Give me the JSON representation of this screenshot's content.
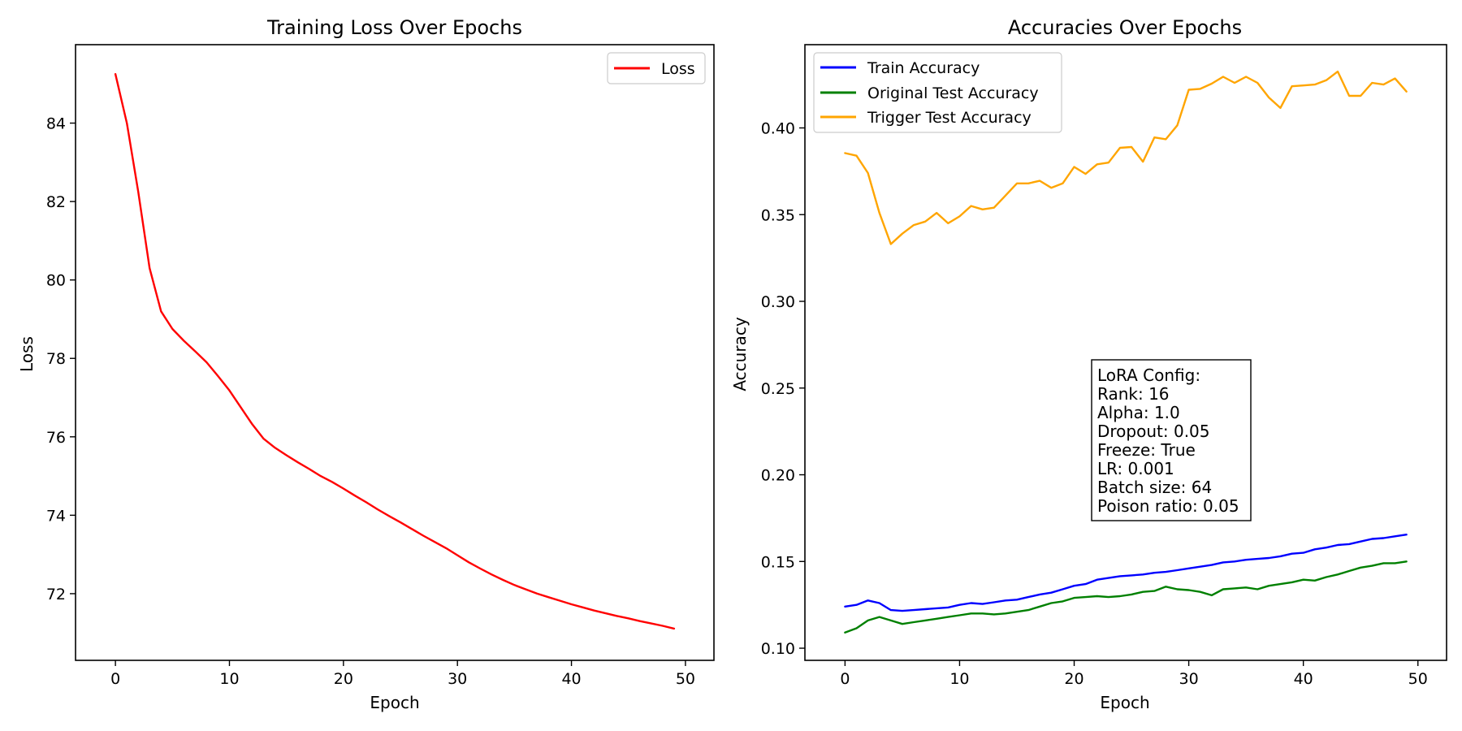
{
  "chart_data": [
    {
      "type": "line",
      "title": "Training Loss Over Epochs",
      "xlabel": "Epoch",
      "ylabel": "Loss",
      "xlim": [
        -3.5,
        52.5
      ],
      "ylim": [
        70.3,
        86.0
      ],
      "xticks": [
        0,
        10,
        20,
        30,
        40,
        50
      ],
      "yticks": [
        72,
        74,
        76,
        78,
        80,
        82,
        84
      ],
      "grid": false,
      "legend_position": "top-right",
      "series": [
        {
          "name": "Loss",
          "color": "#ff0000",
          "x": [
            0,
            1,
            2,
            3,
            4,
            5,
            6,
            7,
            8,
            9,
            10,
            11,
            12,
            13,
            14,
            15,
            16,
            17,
            18,
            19,
            20,
            21,
            22,
            23,
            24,
            25,
            26,
            27,
            28,
            29,
            30,
            31,
            32,
            33,
            34,
            35,
            36,
            37,
            38,
            39,
            40,
            41,
            42,
            43,
            44,
            45,
            46,
            47,
            48,
            49
          ],
          "values": [
            85.25,
            84.0,
            82.25,
            80.3,
            79.2,
            78.75,
            78.45,
            78.18,
            77.9,
            77.55,
            77.18,
            76.75,
            76.32,
            75.95,
            75.72,
            75.53,
            75.35,
            75.18,
            75.0,
            74.85,
            74.68,
            74.5,
            74.33,
            74.15,
            73.98,
            73.82,
            73.65,
            73.48,
            73.32,
            73.16,
            72.98,
            72.8,
            72.64,
            72.49,
            72.35,
            72.22,
            72.11,
            72.0,
            71.91,
            71.82,
            71.73,
            71.65,
            71.57,
            71.5,
            71.43,
            71.37,
            71.3,
            71.24,
            71.18,
            71.11
          ]
        }
      ]
    },
    {
      "type": "line",
      "title": "Accuracies Over Epochs",
      "xlabel": "Epoch",
      "ylabel": "Accuracy",
      "xlim": [
        -3.5,
        52.5
      ],
      "ylim": [
        0.093,
        0.448
      ],
      "xticks": [
        0,
        10,
        20,
        30,
        40,
        50
      ],
      "yticks": [
        "0.10",
        "0.15",
        "0.20",
        "0.25",
        "0.30",
        "0.35",
        "0.40"
      ],
      "grid": false,
      "legend_position": "top-left",
      "series": [
        {
          "name": "Train Accuracy",
          "color": "#0000ff",
          "x": [
            0,
            1,
            2,
            3,
            4,
            5,
            6,
            7,
            8,
            9,
            10,
            11,
            12,
            13,
            14,
            15,
            16,
            17,
            18,
            19,
            20,
            21,
            22,
            23,
            24,
            25,
            26,
            27,
            28,
            29,
            30,
            31,
            32,
            33,
            34,
            35,
            36,
            37,
            38,
            39,
            40,
            41,
            42,
            43,
            44,
            45,
            46,
            47,
            48,
            49
          ],
          "values": [
            0.124,
            0.125,
            0.1275,
            0.126,
            0.122,
            0.1215,
            0.122,
            0.1225,
            0.123,
            0.1235,
            0.125,
            0.126,
            0.1255,
            0.1265,
            0.1275,
            0.128,
            0.1295,
            0.131,
            0.132,
            0.134,
            0.136,
            0.137,
            0.1395,
            0.1405,
            0.1415,
            0.142,
            0.1425,
            0.1435,
            0.144,
            0.145,
            0.146,
            0.147,
            0.148,
            0.1495,
            0.15,
            0.151,
            0.1515,
            0.152,
            0.153,
            0.1545,
            0.155,
            0.157,
            0.158,
            0.1595,
            0.16,
            0.1615,
            0.163,
            0.1635,
            0.1645,
            0.1655
          ]
        },
        {
          "name": "Original Test Accuracy",
          "color": "#008000",
          "x": [
            0,
            1,
            2,
            3,
            4,
            5,
            6,
            7,
            8,
            9,
            10,
            11,
            12,
            13,
            14,
            15,
            16,
            17,
            18,
            19,
            20,
            21,
            22,
            23,
            24,
            25,
            26,
            27,
            28,
            29,
            30,
            31,
            32,
            33,
            34,
            35,
            36,
            37,
            38,
            39,
            40,
            41,
            42,
            43,
            44,
            45,
            46,
            47,
            48,
            49
          ],
          "values": [
            0.109,
            0.1115,
            0.116,
            0.118,
            0.116,
            0.114,
            0.115,
            0.116,
            0.117,
            0.118,
            0.119,
            0.12,
            0.12,
            0.1195,
            0.12,
            0.121,
            0.122,
            0.124,
            0.126,
            0.127,
            0.129,
            0.1295,
            0.13,
            0.1295,
            0.13,
            0.131,
            0.1325,
            0.133,
            0.1355,
            0.134,
            0.1335,
            0.1325,
            0.1305,
            0.134,
            0.1345,
            0.135,
            0.134,
            0.136,
            0.137,
            0.138,
            0.1395,
            0.139,
            0.141,
            0.1425,
            0.1445,
            0.1465,
            0.1475,
            0.149,
            0.149,
            0.15
          ]
        },
        {
          "name": "Trigger Test Accuracy",
          "color": "#ffa500",
          "x": [
            0,
            1,
            2,
            3,
            4,
            5,
            6,
            7,
            8,
            9,
            10,
            11,
            12,
            13,
            14,
            15,
            16,
            17,
            18,
            19,
            20,
            21,
            22,
            23,
            24,
            25,
            26,
            27,
            28,
            29,
            30,
            31,
            32,
            33,
            34,
            35,
            36,
            37,
            38,
            39,
            40,
            41,
            42,
            43,
            44,
            45,
            46,
            47,
            48,
            49
          ],
          "values": [
            0.3855,
            0.384,
            0.374,
            0.351,
            0.333,
            0.339,
            0.344,
            0.346,
            0.351,
            0.345,
            0.349,
            0.355,
            0.353,
            0.354,
            0.361,
            0.368,
            0.368,
            0.3695,
            0.3655,
            0.368,
            0.3775,
            0.3735,
            0.379,
            0.38,
            0.3885,
            0.389,
            0.3805,
            0.3945,
            0.3935,
            0.4015,
            0.422,
            0.4225,
            0.4255,
            0.4295,
            0.426,
            0.4295,
            0.426,
            0.4175,
            0.4115,
            0.424,
            0.4245,
            0.425,
            0.4275,
            0.4325,
            0.4185,
            0.4185,
            0.426,
            0.425,
            0.4285,
            0.421
          ]
        }
      ],
      "annotation": {
        "lines": [
          "LoRA Config:",
          "Rank: 16",
          "Alpha: 1.0",
          "Dropout: 0.05",
          "Freeze: True",
          "LR: 0.001",
          "Batch size: 64",
          "Poison ratio: 0.05"
        ]
      }
    }
  ]
}
